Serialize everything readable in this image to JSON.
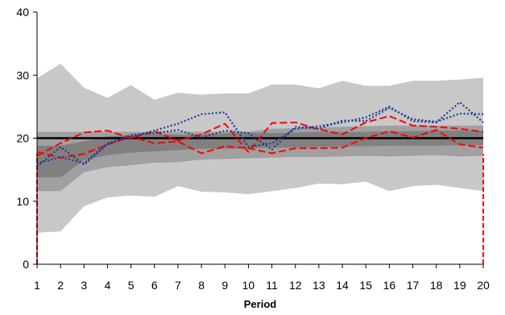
{
  "chart_data": {
    "type": "line",
    "title": "",
    "xlabel": "Period",
    "ylabel": "",
    "x": [
      1,
      2,
      3,
      4,
      5,
      6,
      7,
      8,
      9,
      10,
      11,
      12,
      13,
      14,
      15,
      16,
      17,
      18,
      19,
      20
    ],
    "xlim": [
      1,
      20
    ],
    "ylim": [
      0,
      40
    ],
    "yticks": [
      0,
      10,
      20,
      30,
      40
    ],
    "grid": false,
    "legend": "none",
    "reference_line": {
      "y": 20,
      "color": "#000000"
    },
    "bands": [
      {
        "color": "#c8c8c8",
        "lower": [
          5,
          5.2,
          9.2,
          10.6,
          10.9,
          10.7,
          12.4,
          11.5,
          11.4,
          11.1,
          11.6,
          12.1,
          12.8,
          12.7,
          13.1,
          11.6,
          12.4,
          12.6,
          12.1,
          11.6
        ],
        "upper": [
          29.5,
          31.8,
          28.0,
          26.4,
          28.4,
          26.1,
          27.2,
          26.9,
          27.1,
          27.1,
          28.5,
          28.5,
          27.9,
          29.1,
          28.3,
          28.3,
          29.1,
          29.1,
          29.3,
          29.6
        ]
      },
      {
        "color": "#a0a0a0",
        "lower": [
          11.6,
          11.6,
          14.6,
          15.4,
          15.7,
          16.1,
          16.2,
          16.6,
          16.7,
          16.8,
          16.9,
          17.0,
          17.0,
          17.1,
          17.2,
          17.1,
          17.2,
          17.3,
          17.1,
          17.2
        ],
        "upper": [
          21.0,
          21.0,
          21.0,
          21.0,
          21.0,
          21.0,
          21.0,
          21.0,
          21.0,
          21.0,
          21.5,
          21.6,
          21.7,
          21.8,
          21.9,
          22.0,
          22.0,
          22.0,
          22.0,
          22.0
        ]
      },
      {
        "color": "#808080",
        "lower": [
          13.8,
          13.8,
          16.5,
          17.3,
          17.7,
          17.9,
          18.1,
          18.3,
          18.3,
          18.4,
          18.5,
          18.5,
          18.6,
          18.7,
          18.7,
          18.8,
          18.8,
          18.8,
          18.9,
          18.9
        ],
        "upper": [
          18.8,
          18.8,
          19.5,
          20.3,
          20.5,
          20.7,
          20.5,
          20.6,
          20.8,
          20.9,
          20.8,
          20.9,
          21.0,
          21.0,
          21.0,
          21.1,
          21.1,
          21.2,
          21.2,
          21.2
        ]
      }
    ],
    "series": [
      {
        "color": "#ff0000",
        "dash": "dashed",
        "values": [
          17.2,
          19.2,
          20.9,
          21.2,
          20.0,
          21.1,
          19.6,
          20.6,
          22.3,
          17.8,
          22.4,
          22.5,
          21.4,
          20.6,
          22.5,
          23.5,
          22.0,
          21.8,
          21.5,
          21.0
        ]
      },
      {
        "color": "#ff0000",
        "dash": "dashed",
        "values": [
          17.8,
          16.9,
          17.5,
          19.0,
          20.2,
          19.2,
          19.5,
          17.6,
          18.7,
          18.4,
          17.6,
          18.4,
          18.4,
          18.5,
          20.0,
          21.1,
          20.1,
          21.3,
          19.0,
          18.5
        ]
      },
      {
        "color": "#1f3a93",
        "dash": "dotted",
        "values": [
          16.0,
          17.0,
          16.0,
          19.2,
          20.2,
          21.2,
          22.3,
          23.8,
          24.1,
          18.6,
          19.2,
          21.5,
          21.9,
          22.5,
          23.3,
          25.0,
          22.7,
          22.5,
          25.7,
          22.5
        ]
      },
      {
        "color": "#1f3a93",
        "dash": "dotted",
        "values": [
          15.5,
          18.6,
          15.8,
          19.0,
          20.5,
          20.8,
          21.3,
          20.1,
          21.2,
          20.8,
          18.2,
          21.8,
          21.5,
          22.8,
          22.7,
          24.8,
          23.0,
          22.6,
          23.9,
          23.8
        ]
      }
    ]
  }
}
